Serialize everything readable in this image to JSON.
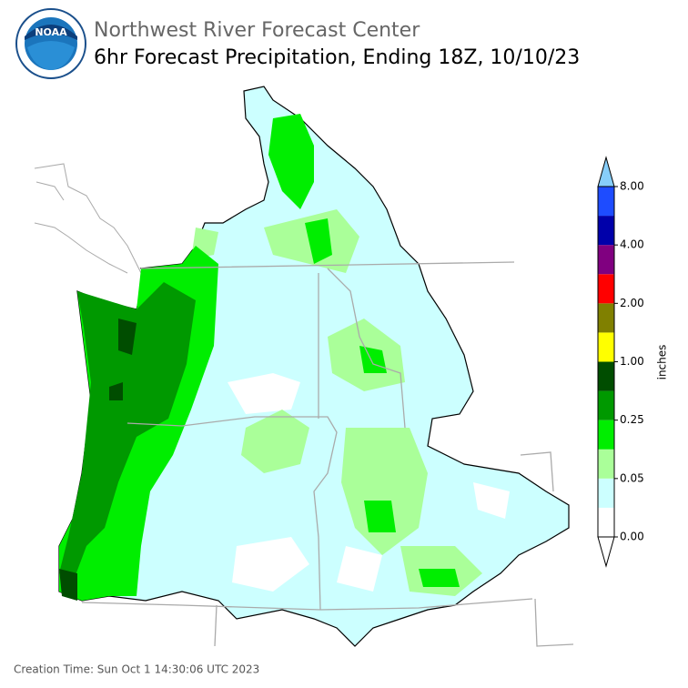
{
  "header": {
    "logo_text": "NOAA",
    "title": "Northwest River Forecast Center",
    "subtitle": "6hr Forecast Precipitation, Ending 18Z, 10/10/23"
  },
  "legend": {
    "label": "inches",
    "colors": [
      "#ffffff",
      "#ccffff",
      "#aaff99",
      "#00ee00",
      "#009900",
      "#004d00",
      "#ffff00",
      "#808000",
      "#ff0000",
      "#800080",
      "#0000aa",
      "#1e4cff"
    ],
    "over_color": "#87cefa",
    "ticks": [
      {
        "value": 0,
        "label": "0.00"
      },
      {
        "value": 0.05,
        "label": "0.05"
      },
      {
        "value": 0.25,
        "label": "0.25"
      },
      {
        "value": 1,
        "label": "1.00"
      },
      {
        "value": 2,
        "label": "2.00"
      },
      {
        "value": 4,
        "label": "4.00"
      },
      {
        "value": 8,
        "label": "8.00"
      }
    ]
  },
  "footer": {
    "creation_time": "Creation Time: Sun Oct 1 14:30:06 UTC 2023"
  }
}
